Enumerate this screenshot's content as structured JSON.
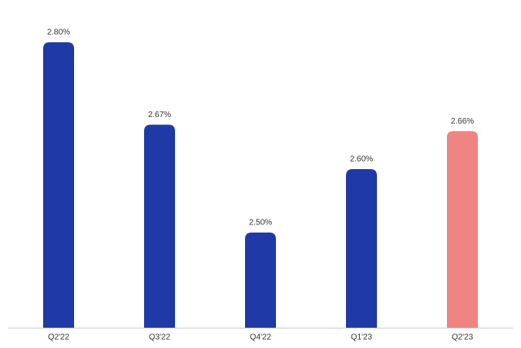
{
  "chart_data": {
    "type": "bar",
    "categories": [
      "Q2'22",
      "Q3'22",
      "Q4'22",
      "Q1'23",
      "Q2'23"
    ],
    "values": [
      2.8,
      2.67,
      2.5,
      2.6,
      2.66
    ],
    "value_labels": [
      "2.80%",
      "2.67%",
      "2.50%",
      "2.60%",
      "2.66%"
    ],
    "colors": [
      "#1f3aa6",
      "#1f3aa6",
      "#1f3aa6",
      "#1f3aa6",
      "#f08482"
    ],
    "ylim": [
      2.35,
      2.85
    ]
  }
}
